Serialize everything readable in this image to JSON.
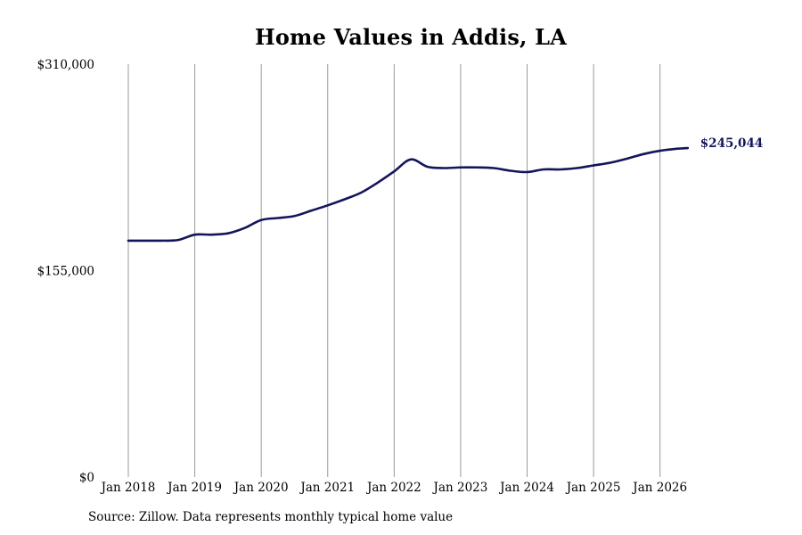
{
  "chart_data": {
    "type": "line",
    "title": "Home Values in Addis, LA",
    "xlabel": "",
    "ylabel": "",
    "source_note": "Source: Zillow. Data represents monthly typical home value",
    "x_ticks": [
      "Jan 2018",
      "Jan 2019",
      "Jan 2020",
      "Jan 2021",
      "Jan 2022",
      "Jan 2023",
      "Jan 2024",
      "Jan 2025",
      "Jan 2026"
    ],
    "y_ticks": [
      "$0",
      "$155,000",
      "$310,000"
    ],
    "y_tick_values": [
      0,
      155000,
      310000
    ],
    "ylim": [
      0,
      310000
    ],
    "xlim": [
      "2018-01",
      "2026-07"
    ],
    "grid": "vertical lines at January of each year",
    "line_color": "#14145a",
    "grid_color": "#999999",
    "end_label": "$245,044",
    "series": [
      {
        "x": [
          "2018-01",
          "2018-04",
          "2018-07",
          "2018-10",
          "2019-01",
          "2019-04",
          "2019-07",
          "2019-10",
          "2020-01",
          "2020-04",
          "2020-07",
          "2020-10",
          "2021-01",
          "2021-04",
          "2021-07",
          "2021-10",
          "2022-01",
          "2022-04",
          "2022-07",
          "2022-10",
          "2023-01",
          "2023-04",
          "2023-07",
          "2023-10",
          "2024-01",
          "2024-04",
          "2024-07",
          "2024-10",
          "2025-01",
          "2025-04",
          "2025-07",
          "2025-10",
          "2026-01",
          "2026-04",
          "2026-06"
        ],
        "values": [
          177500,
          177500,
          177500,
          178000,
          182000,
          182000,
          183000,
          187000,
          193000,
          194500,
          196000,
          200000,
          204000,
          208500,
          213500,
          221000,
          229500,
          238500,
          233000,
          232000,
          232500,
          232500,
          232000,
          230000,
          229000,
          231000,
          231000,
          232000,
          234000,
          236000,
          239000,
          242500,
          245000,
          246500,
          247000
        ]
      }
    ]
  }
}
